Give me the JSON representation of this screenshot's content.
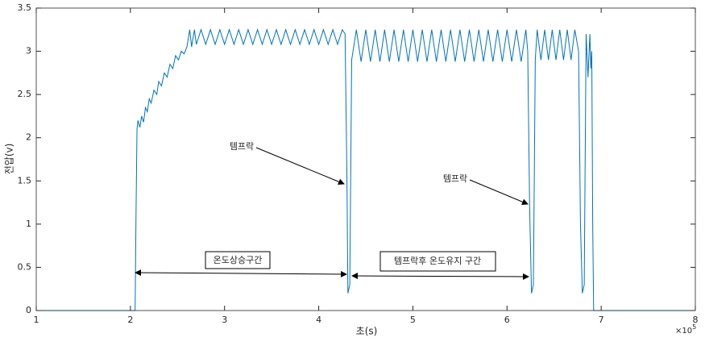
{
  "chart_data": {
    "type": "line",
    "x_label": "초(s)",
    "y_label": "전압(v)",
    "x_exponent": {
      "base": "×10",
      "power": "5"
    },
    "color": "#0072bd",
    "xlim": [
      1,
      8
    ],
    "xticks": [
      1,
      2,
      3,
      4,
      5,
      6,
      7,
      8
    ],
    "ylim": [
      0,
      3.5
    ],
    "yticks": [
      0,
      0.5,
      1,
      1.5,
      2,
      2.5,
      3,
      3.5
    ],
    "grid": false,
    "annotations": {
      "tempolock_1": "템프락",
      "tempolock_2": "템프락",
      "rise": "온도상승구간",
      "hold": "템프락후 온도유지 구간"
    },
    "x": [
      1,
      2.05,
      2.06,
      2.07,
      2.08,
      2.1,
      2.12,
      2.14,
      2.16,
      2.18,
      2.2,
      2.22,
      2.25,
      2.28,
      2.3,
      2.33,
      2.36,
      2.39,
      2.42,
      2.45,
      2.48,
      2.51,
      2.54,
      2.57,
      2.6,
      2.63,
      2.65,
      2.68,
      2.7,
      2.75,
      2.8,
      2.85,
      2.9,
      2.95,
      3,
      3.05,
      3.1,
      3.15,
      3.2,
      3.25,
      3.3,
      3.35,
      3.4,
      3.45,
      3.5,
      3.55,
      3.6,
      3.65,
      3.7,
      3.75,
      3.8,
      3.85,
      3.9,
      3.95,
      4,
      4.05,
      4.1,
      4.15,
      4.2,
      4.25,
      4.28,
      4.3,
      4.31,
      4.33,
      4.35,
      4.4,
      4.45,
      4.5,
      4.55,
      4.6,
      4.65,
      4.7,
      4.75,
      4.8,
      4.85,
      4.9,
      4.95,
      5,
      5.05,
      5.1,
      5.15,
      5.2,
      5.25,
      5.3,
      5.35,
      5.4,
      5.45,
      5.5,
      5.55,
      5.6,
      5.65,
      5.7,
      5.75,
      5.8,
      5.85,
      5.9,
      5.95,
      6,
      6.05,
      6.1,
      6.15,
      6.2,
      6.22,
      6.24,
      6.26,
      6.28,
      6.3,
      6.32,
      6.36,
      6.4,
      6.44,
      6.48,
      6.52,
      6.56,
      6.6,
      6.64,
      6.68,
      6.72,
      6.76,
      6.78,
      6.8,
      6.82,
      6.84,
      6.86,
      6.88,
      6.89,
      6.9,
      6.91,
      6.92,
      8
    ],
    "values": [
      0,
      0,
      1.15,
      2.1,
      2.2,
      2.12,
      2.25,
      2.18,
      2.35,
      2.3,
      2.45,
      2.4,
      2.55,
      2.5,
      2.65,
      2.6,
      2.75,
      2.7,
      2.85,
      2.8,
      2.95,
      2.9,
      3.0,
      2.97,
      3.05,
      3.25,
      3.05,
      3.25,
      3.08,
      3.25,
      3.08,
      3.25,
      3.08,
      3.25,
      3.08,
      3.25,
      3.08,
      3.25,
      3.08,
      3.25,
      3.08,
      3.25,
      3.08,
      3.25,
      3.08,
      3.25,
      3.08,
      3.25,
      3.08,
      3.25,
      3.08,
      3.25,
      3.08,
      3.25,
      3.08,
      3.25,
      3.08,
      3.25,
      3.08,
      3.25,
      3.2,
      1.5,
      0.2,
      0.3,
      2.9,
      3.25,
      2.88,
      3.25,
      2.88,
      3.25,
      2.88,
      3.25,
      2.88,
      3.25,
      2.88,
      3.25,
      2.88,
      3.25,
      2.88,
      3.25,
      2.88,
      3.25,
      2.88,
      3.25,
      2.88,
      3.25,
      2.88,
      3.25,
      2.88,
      3.25,
      2.88,
      3.25,
      2.88,
      3.25,
      2.88,
      3.25,
      2.88,
      3.25,
      2.88,
      3.25,
      2.88,
      3.25,
      3.0,
      1.2,
      0.2,
      0.3,
      2.9,
      3.25,
      2.9,
      3.25,
      2.9,
      3.25,
      2.9,
      3.25,
      2.9,
      3.25,
      2.9,
      3.25,
      3.0,
      1.0,
      0.2,
      0.3,
      3.2,
      2.7,
      3.2,
      2.8,
      3.0,
      1.0,
      0,
      0
    ]
  }
}
